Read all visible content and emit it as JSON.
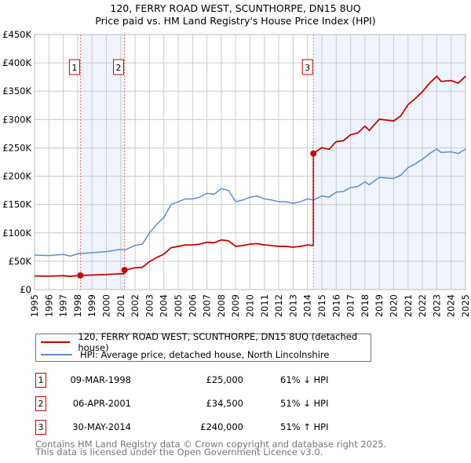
{
  "chart_data": {
    "type": "line",
    "title": "120, FERRY ROAD WEST, SCUNTHORPE, DN15 8UQ",
    "subtitle": "Price paid vs. HM Land Registry's House Price Index (HPI)",
    "xlim": [
      1995,
      2025
    ],
    "ylim": [
      0,
      450000
    ],
    "y_ticks": [
      {
        "v": 0,
        "label": "£0"
      },
      {
        "v": 50000,
        "label": "£50K"
      },
      {
        "v": 100000,
        "label": "£100K"
      },
      {
        "v": 150000,
        "label": "£150K"
      },
      {
        "v": 200000,
        "label": "£200K"
      },
      {
        "v": 250000,
        "label": "£250K"
      },
      {
        "v": 300000,
        "label": "£300K"
      },
      {
        "v": 350000,
        "label": "£350K"
      },
      {
        "v": 400000,
        "label": "£400K"
      },
      {
        "v": 450000,
        "label": "£450K"
      }
    ],
    "x_ticks": [
      "1995",
      "1996",
      "1997",
      "1998",
      "1999",
      "2000",
      "2001",
      "2002",
      "2003",
      "2004",
      "2005",
      "2006",
      "2007",
      "2008",
      "2009",
      "2010",
      "2011",
      "2012",
      "2013",
      "2014",
      "2015",
      "2016",
      "2017",
      "2018",
      "2019",
      "2020",
      "2021",
      "2022",
      "2023",
      "2024",
      "2025"
    ],
    "grid": true,
    "colors": {
      "property": "#cc0000",
      "hpi": "#5b8fd0",
      "shade": "#eef3fc"
    },
    "hpi_series": {
      "name": "HPI: Average price, detached house, North Lincolnshire",
      "x": [
        1995,
        1996,
        1997,
        1997.5,
        1998,
        1999,
        2000,
        2001,
        2001.3,
        2002,
        2002.5,
        2003,
        2003.5,
        2004,
        2004.5,
        2005,
        2005.5,
        2006,
        2006.5,
        2007,
        2007.5,
        2008,
        2008.5,
        2009,
        2009.5,
        2010,
        2010.5,
        2011,
        2011.5,
        2012,
        2012.5,
        2013,
        2013.5,
        2014,
        2014.4,
        2015,
        2015.5,
        2016,
        2016.5,
        2017,
        2017.5,
        2018,
        2018.3,
        2019,
        2019.5,
        2020,
        2020.5,
        2021,
        2021.5,
        2022,
        2022.5,
        2023,
        2023.3,
        2024,
        2024.5,
        2025
      ],
      "y": [
        61000,
        60000,
        62000,
        59000,
        63000,
        65000,
        67000,
        71000,
        70000,
        78000,
        80000,
        100000,
        115000,
        127000,
        150000,
        155000,
        160000,
        160000,
        163000,
        170000,
        168000,
        178000,
        175000,
        155000,
        158000,
        163000,
        165000,
        160000,
        158000,
        155000,
        155000,
        152000,
        155000,
        160000,
        158000,
        165000,
        163000,
        172000,
        173000,
        180000,
        182000,
        190000,
        185000,
        198000,
        197000,
        196000,
        202000,
        215000,
        222000,
        230000,
        240000,
        248000,
        242000,
        243000,
        240000,
        248000
      ]
    },
    "property_series": {
      "name": "120, FERRY ROAD WEST, SCUNTHORPE, DN15 8UQ (detached house)"
    },
    "sales": [
      {
        "id": "1",
        "t": 1998.19,
        "date": "09-MAR-1998",
        "price": 25000,
        "price_label": "£25,000",
        "hpi_label": "61% ↓ HPI"
      },
      {
        "id": "2",
        "t": 2001.26,
        "date": "06-APR-2001",
        "price": 34500,
        "price_label": "£34,500",
        "hpi_label": "51% ↓ HPI"
      },
      {
        "id": "3",
        "t": 2014.41,
        "date": "30-MAY-2014",
        "price": 240000,
        "price_label": "£240,000",
        "hpi_label": "51% ↑ HPI"
      }
    ]
  },
  "footer": {
    "line1": "Contains HM Land Registry data © Crown copyright and database right 2025.",
    "line2": "This data is licensed under the Open Government Licence v3.0."
  }
}
